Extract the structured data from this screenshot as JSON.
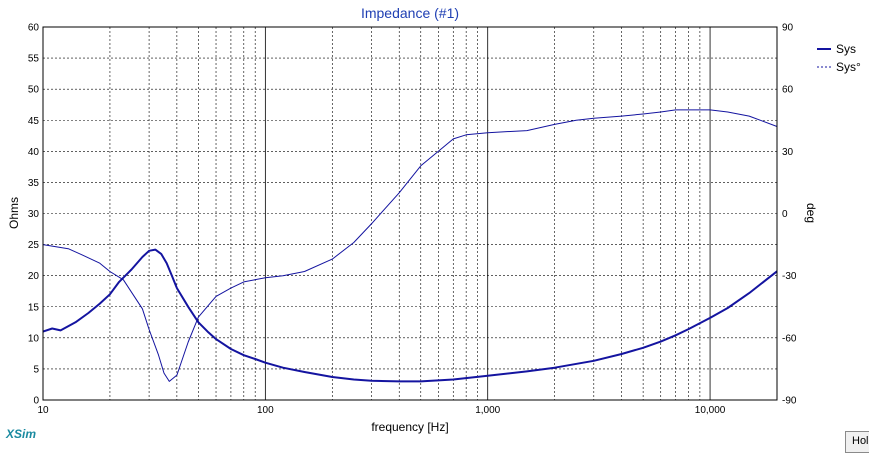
{
  "app_brand": "XSim",
  "hold_button_label": "Hold",
  "colors": {
    "series": "#1414a0",
    "title": "#1f3fb3",
    "grid": "#000000",
    "brand": "#1a8aa0"
  },
  "chart_data": {
    "type": "line",
    "title": "Impedance (#1)",
    "xlabel": "frequency [Hz]",
    "ylabel": "Ohms",
    "y2label": "deg",
    "xscale": "log",
    "xlim": [
      10,
      20000
    ],
    "ylim": [
      0,
      60
    ],
    "y2lim": [
      -90,
      90
    ],
    "x_ticks": [
      10,
      100,
      1000,
      10000
    ],
    "x_tick_labels": [
      "10",
      "100",
      "1,000",
      "10,000"
    ],
    "y_ticks": [
      0,
      5,
      10,
      15,
      20,
      25,
      30,
      35,
      40,
      45,
      50,
      55,
      60
    ],
    "y2_ticks": [
      -90,
      -60,
      -30,
      0,
      30,
      60,
      90
    ],
    "grid": true,
    "legend_position": "top-right",
    "series": [
      {
        "name": "Sys",
        "axis": "left",
        "style": "solid",
        "x": [
          10,
          11,
          12,
          14,
          16,
          18,
          20,
          22,
          25,
          28,
          30,
          32,
          34,
          36,
          38,
          40,
          45,
          50,
          55,
          60,
          70,
          80,
          90,
          100,
          120,
          150,
          200,
          250,
          300,
          400,
          500,
          700,
          1000,
          1500,
          2000,
          3000,
          4000,
          5000,
          6000,
          7000,
          8000,
          10000,
          12000,
          15000,
          20000
        ],
        "y": [
          11,
          11.5,
          11.2,
          12.5,
          14,
          15.5,
          17,
          19,
          21,
          23,
          24,
          24.2,
          23.5,
          22,
          20,
          18,
          15,
          12.5,
          11,
          9.8,
          8.2,
          7.2,
          6.6,
          6.0,
          5.2,
          4.5,
          3.7,
          3.3,
          3.1,
          3.0,
          3.0,
          3.3,
          3.9,
          4.6,
          5.2,
          6.3,
          7.4,
          8.4,
          9.4,
          10.4,
          11.4,
          13.2,
          14.8,
          17.2,
          20.7
        ]
      },
      {
        "name": "Sys°",
        "axis": "right",
        "style": "dashed",
        "x": [
          10,
          13,
          15,
          18,
          20,
          23,
          25,
          28,
          30,
          33,
          35,
          37,
          40,
          45,
          50,
          60,
          70,
          80,
          100,
          120,
          150,
          200,
          250,
          300,
          400,
          500,
          600,
          700,
          800,
          1000,
          1500,
          2000,
          2500,
          3000,
          4000,
          5000,
          6000,
          7000,
          8000,
          9000,
          10000,
          12000,
          15000,
          20000
        ],
        "y": [
          -15,
          -17,
          -20,
          -24,
          -28,
          -32,
          -38,
          -46,
          -56,
          -68,
          -77,
          -81,
          -78,
          -62,
          -50,
          -40,
          -36,
          -33,
          -31,
          -30,
          -28,
          -22,
          -14,
          -5,
          10,
          23,
          30,
          36,
          38,
          39,
          40,
          43,
          45,
          46,
          47,
          48,
          49,
          50,
          50,
          50,
          50,
          49,
          47,
          42
        ]
      }
    ]
  }
}
